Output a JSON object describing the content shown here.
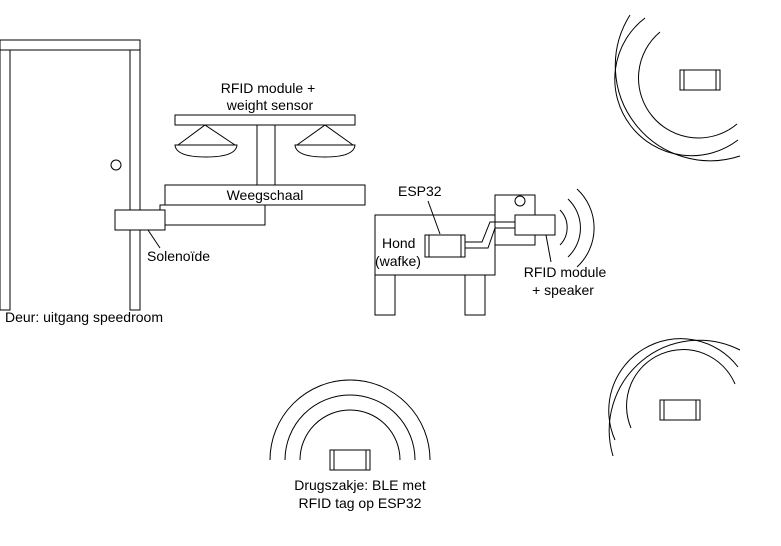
{
  "labels": {
    "rfid_weight_line1": "RFID module +",
    "rfid_weight_line2": "weight sensor",
    "weegschaal": "Weegschaal",
    "solenoide": "Solenoïde",
    "door": "Deur: uitgang speedroom",
    "esp32": "ESP32",
    "hond_line1": "Hond",
    "hond_line2": "(wafke)",
    "rfid_speaker_line1": "RFID module",
    "rfid_speaker_line2": "+ speaker",
    "drugszakje_line1": "Drugszakje: BLE met",
    "drugszakje_line2": "RFID tag op ESP32"
  }
}
